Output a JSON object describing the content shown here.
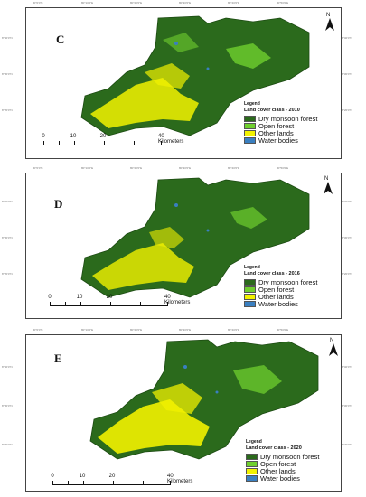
{
  "colors": {
    "dry_monsoon_forest": "#2b6a1c",
    "open_forest": "#6fcf2e",
    "other_lands": "#f2f200",
    "water_bodies": "#3a7fc0"
  },
  "panels": [
    {
      "letter": "C",
      "legend_title": "Legend",
      "legend_heading": "Land cover class - 2010",
      "classes": [
        "Dry monsoon forest",
        "Open forest",
        "Other lands",
        "Water bodies"
      ],
      "north_label": "N",
      "scale_ticks": [
        "0",
        "10",
        "20",
        "40 Kilometers"
      ]
    },
    {
      "letter": "D",
      "legend_title": "Legend",
      "legend_heading": "Land cover class - 2016",
      "classes": [
        "Dry monsoon forest",
        "Open forest",
        "Other lands",
        "Water bodies"
      ],
      "north_label": "N",
      "scale_ticks": [
        "0",
        "10",
        "20",
        "40 Kilometers"
      ]
    },
    {
      "letter": "E",
      "legend_title": "Legend",
      "legend_heading": "Land cover class - 2020",
      "classes": [
        "Dry monsoon forest",
        "Open forest",
        "Other lands",
        "Water bodies"
      ],
      "north_label": "N",
      "scale_ticks": [
        "0",
        "10",
        "20",
        "40 Kilometers"
      ]
    }
  ]
}
